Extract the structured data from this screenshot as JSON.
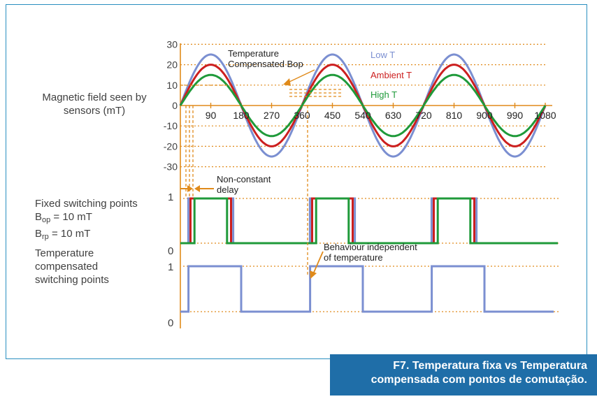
{
  "labels": {
    "magnetic_field_line1": "Magnetic field seen by",
    "magnetic_field_line2": "sensors (mT)",
    "fixed_title": "Fixed switching points",
    "bop_main": "B",
    "bop_sub": "op",
    "bop_value": " = 10 mT",
    "brp_main": "B",
    "brp_sub": "rp",
    "brp_value": " = 10 mT",
    "temp_line1": "Temperature",
    "temp_line2": "compensated",
    "temp_line3": "switching points",
    "fixed_one": "1",
    "fixed_zero": "0",
    "temp_one": "1",
    "temp_zero": "0"
  },
  "annotations": {
    "compensated_bop_line1": "Temperature",
    "compensated_bop_line2": "Compensated Bop",
    "non_constant_line1": "Non-constant",
    "non_constant_line2": "delay",
    "behaviour_line1": "Behaviour independent",
    "behaviour_line2": "of temperature"
  },
  "legend": {
    "low": "Low T",
    "ambient": "Ambient T",
    "high": "High T"
  },
  "colors": {
    "low": "#7b8fd1",
    "ambient": "#cc1f1f",
    "high": "#1f9a3a",
    "grid": "#e08a1a",
    "frame": "#2a8fc0",
    "caption_bg": "#1f6ea8"
  },
  "chart_data": {
    "type": "line",
    "x_ticks": [
      "90",
      "180",
      "270",
      "360",
      "450",
      "540",
      "630",
      "720",
      "810",
      "900",
      "990",
      "1080"
    ],
    "y_ticks": [
      "30",
      "20",
      "10",
      "0",
      "-10",
      "-20",
      "-30"
    ],
    "ylim": [
      -30,
      30
    ],
    "xlim": [
      0,
      1080
    ],
    "series": [
      {
        "name": "Low T",
        "amplitude": 25
      },
      {
        "name": "Ambient T",
        "amplitude": 20
      },
      {
        "name": "High T",
        "amplitude": 15
      }
    ]
  },
  "caption": {
    "line1": "F7. Temperatura fixa vs Temperatura",
    "line2": "compensada com pontos de comutação."
  }
}
